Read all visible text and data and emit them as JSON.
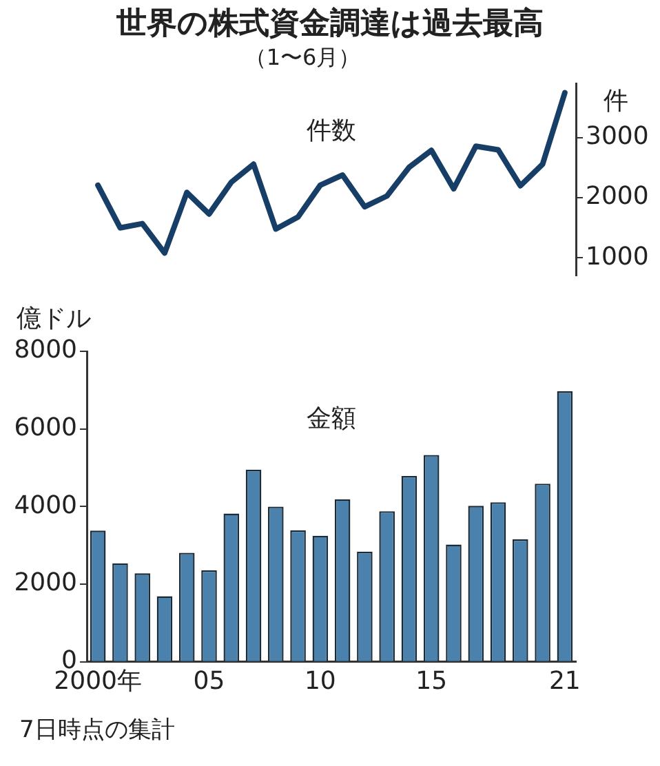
{
  "chart_data": [
    {
      "type": "line",
      "title": "世界の株式資金調達は過去最高",
      "subtitle": "（1〜6月）",
      "ylabel": "件",
      "categories": [
        null,
        null,
        null,
        null,
        null,
        null,
        null,
        null,
        null,
        null,
        null,
        null,
        null,
        null,
        null,
        null,
        null,
        null,
        null,
        null,
        null,
        null
      ],
      "series": [
        {
          "color": "#173e66",
          "values": [
            2210,
            1500,
            1570,
            1080,
            2090,
            1730,
            2260,
            2560,
            1480,
            1680,
            2210,
            2380,
            1850,
            2030,
            2510,
            2790,
            2150,
            2860,
            2800,
            2200,
            2560,
            3750
          ]
        }
      ],
      "ylim": [
        700,
        3900
      ],
      "yticks": [
        1000,
        2000,
        3000
      ],
      "tick_labels": "y",
      "grid": false,
      "legend": false,
      "marker": "none",
      "annotations": [
        "件数"
      ]
    },
    {
      "type": "bar",
      "ylabel": "億ドル",
      "categories": [
        "2000年",
        null,
        null,
        null,
        null,
        "05",
        null,
        null,
        null,
        null,
        "10",
        null,
        null,
        null,
        null,
        "15",
        null,
        null,
        null,
        null,
        null,
        "21"
      ],
      "series": [
        {
          "color": "#4a82ad",
          "values": [
            3380,
            2540,
            2280,
            1690,
            2810,
            2360,
            3820,
            4950,
            4000,
            3390,
            3250,
            4190,
            2840,
            3880,
            4790,
            5330,
            3020,
            4020,
            4110,
            3160,
            4590,
            6970
          ]
        }
      ],
      "ylim": [
        0,
        8000
      ],
      "yticks": [
        0,
        2000,
        4000,
        6000,
        8000
      ],
      "grid": false,
      "legend": false,
      "annotations": [
        "金額",
        "7日時点の集計"
      ]
    }
  ]
}
